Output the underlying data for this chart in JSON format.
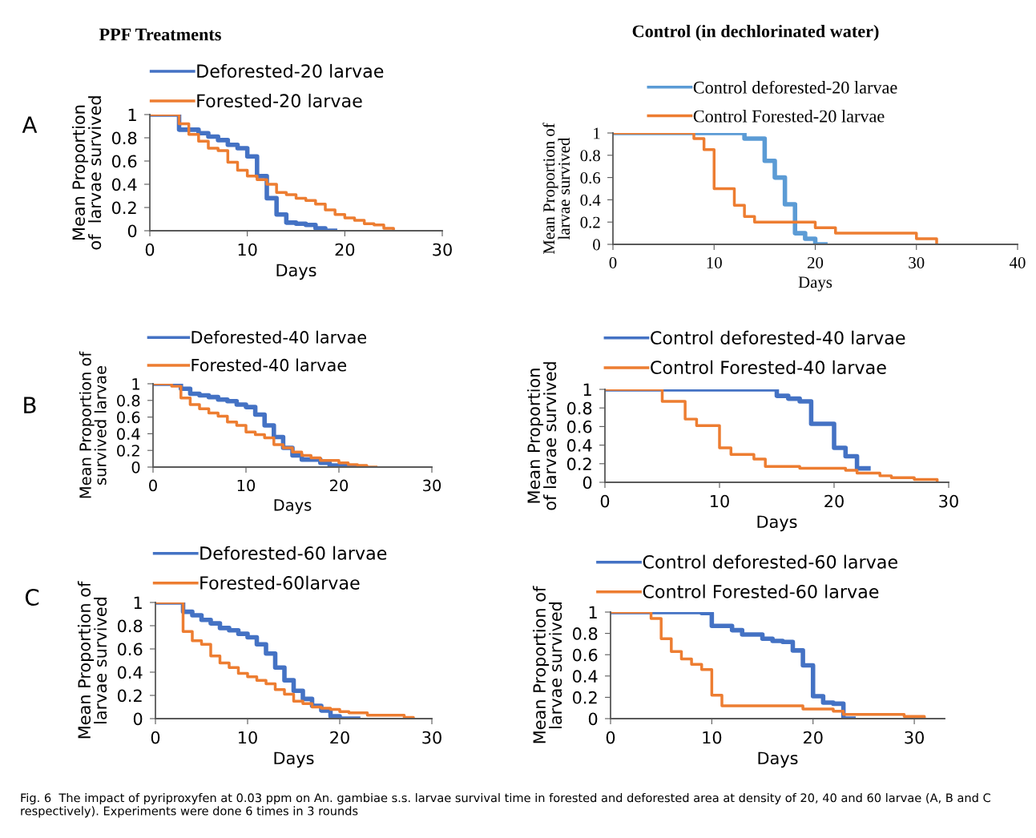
{
  "chart_data": [
    {
      "type": "step",
      "title": "PPF Treatments",
      "xlabel": "Days",
      "ylabel": "Mean Proportion\nof  larvae survived",
      "xlim": [
        0,
        30
      ],
      "xticks": [
        0,
        10,
        20,
        30
      ],
      "ylim": [
        0,
        1
      ],
      "yticks": [
        0,
        0.2,
        0.4,
        0.6,
        0.8,
        1
      ],
      "legend": "top left",
      "annotations": [
        "A"
      ],
      "series": [
        {
          "name": "Deforested-20 larvae",
          "color": "#4472c4",
          "x": [
            0,
            3,
            5,
            6,
            7,
            8,
            9,
            10,
            11,
            12,
            13,
            14,
            15,
            16,
            17,
            18,
            19
          ],
          "values": [
            1,
            0.87,
            0.84,
            0.81,
            0.78,
            0.74,
            0.71,
            0.64,
            0.47,
            0.28,
            0.14,
            0.07,
            0.06,
            0.05,
            0.02,
            0,
            0
          ]
        },
        {
          "name": "Forested-20 larvae",
          "color": "#ed7d31",
          "x": [
            0,
            3,
            4,
            5,
            6,
            7,
            8,
            9,
            10,
            11,
            12,
            13,
            14,
            15,
            16,
            17,
            18,
            19,
            20,
            21,
            22,
            23,
            24,
            25
          ],
          "values": [
            1,
            0.92,
            0.83,
            0.77,
            0.71,
            0.69,
            0.59,
            0.52,
            0.47,
            0.44,
            0.4,
            0.33,
            0.31,
            0.28,
            0.26,
            0.23,
            0.18,
            0.14,
            0.11,
            0.09,
            0.06,
            0.05,
            0.02,
            0
          ]
        }
      ]
    },
    {
      "type": "step",
      "title": "Control (in dechlorinated water)",
      "xlabel": "Days",
      "ylabel": "Mean Proportion of\nlarvae survived",
      "xlim": [
        0,
        40
      ],
      "xticks": [
        0,
        10,
        20,
        30,
        40
      ],
      "ylim": [
        0,
        1
      ],
      "yticks": [
        0,
        0.2,
        0.4,
        0.6,
        0.8,
        1
      ],
      "legend": "top left",
      "series": [
        {
          "name": "Control deforested-20 larvae",
          "color": "#5b9bd5",
          "x": [
            0,
            13,
            15,
            16,
            17,
            18,
            19,
            20,
            21
          ],
          "values": [
            1,
            0.95,
            0.75,
            0.6,
            0.36,
            0.1,
            0.05,
            0,
            0
          ]
        },
        {
          "name": "Control Forested-20 larvae",
          "color": "#ed7d31",
          "x": [
            0,
            8,
            9,
            10,
            12,
            13,
            14,
            20,
            22,
            30,
            32
          ],
          "values": [
            1,
            0.95,
            0.85,
            0.5,
            0.35,
            0.25,
            0.2,
            0.15,
            0.1,
            0.05,
            0
          ]
        }
      ]
    },
    {
      "type": "step",
      "xlabel": "Days",
      "ylabel": "Mean Proportion of\nsurvived larvae",
      "xlim": [
        0,
        30
      ],
      "xticks": [
        0,
        10,
        20,
        30
      ],
      "ylim": [
        0,
        1
      ],
      "yticks": [
        0,
        0.2,
        0.4,
        0.6,
        0.8,
        1
      ],
      "legend": "top left",
      "annotations": [
        "B"
      ],
      "series": [
        {
          "name": "Deforested-40 larvae",
          "color": "#4472c4",
          "x": [
            0,
            3,
            4,
            5,
            6,
            7,
            8,
            9,
            10,
            11,
            12,
            13,
            14,
            15,
            16,
            18,
            19,
            21,
            22
          ],
          "values": [
            1,
            0.94,
            0.88,
            0.86,
            0.84,
            0.81,
            0.79,
            0.75,
            0.72,
            0.63,
            0.5,
            0.36,
            0.23,
            0.14,
            0.09,
            0.05,
            0.02,
            0,
            0
          ]
        },
        {
          "name": "Forested-40 larvae",
          "color": "#ed7d31",
          "x": [
            0,
            2,
            3,
            4,
            5,
            6,
            7,
            8,
            9,
            10,
            11,
            12,
            13,
            14,
            15,
            16,
            17,
            18,
            20,
            21,
            22,
            23,
            24
          ],
          "values": [
            1,
            0.97,
            0.83,
            0.75,
            0.7,
            0.65,
            0.61,
            0.54,
            0.5,
            0.42,
            0.39,
            0.35,
            0.27,
            0.23,
            0.18,
            0.14,
            0.11,
            0.08,
            0.05,
            0.03,
            0.02,
            0,
            0
          ]
        }
      ]
    },
    {
      "type": "step",
      "xlabel": "Days",
      "ylabel": "Mean Proportion\nof larvae survived",
      "xlim": [
        0,
        30
      ],
      "xticks": [
        0,
        10,
        20,
        30
      ],
      "ylim": [
        0,
        1
      ],
      "yticks": [
        0,
        0.2,
        0.4,
        0.6,
        0.8,
        1
      ],
      "legend": "top left",
      "series": [
        {
          "name": "Control deforested-40 larvae",
          "color": "#4472c4",
          "x": [
            0,
            15,
            16,
            17,
            18,
            20,
            21,
            22,
            23
          ],
          "values": [
            1,
            0.93,
            0.9,
            0.87,
            0.63,
            0.37,
            0.28,
            0.15,
            0.15
          ]
        },
        {
          "name": "Control Forested-40 larvae",
          "color": "#ed7d31",
          "x": [
            0,
            5,
            7,
            8,
            10,
            11,
            13,
            14,
            17,
            21,
            22,
            24,
            25,
            27,
            29
          ],
          "values": [
            1,
            0.87,
            0.68,
            0.61,
            0.37,
            0.3,
            0.25,
            0.17,
            0.15,
            0.13,
            0.1,
            0.07,
            0.05,
            0.03,
            0
          ]
        }
      ]
    },
    {
      "type": "step",
      "xlabel": "Days",
      "ylabel": "Mean Proportion of\nlarvae survived",
      "xlim": [
        0,
        30
      ],
      "xticks": [
        0,
        10,
        20,
        30
      ],
      "ylim": [
        0,
        1
      ],
      "yticks": [
        0,
        0.2,
        0.4,
        0.6,
        0.8,
        1
      ],
      "legend": "top left",
      "annotations": [
        "C"
      ],
      "series": [
        {
          "name": "Deforested-60 larvae",
          "color": "#4472c4",
          "x": [
            0,
            3,
            4,
            5,
            6,
            7,
            8,
            9,
            10,
            11,
            12,
            13,
            14,
            15,
            16,
            17,
            18,
            19,
            20,
            22
          ],
          "values": [
            1,
            0.92,
            0.89,
            0.85,
            0.82,
            0.78,
            0.76,
            0.73,
            0.7,
            0.64,
            0.56,
            0.44,
            0.33,
            0.24,
            0.17,
            0.11,
            0.07,
            0.02,
            0,
            0
          ]
        },
        {
          "name": "Forested-60larvae",
          "color": "#ed7d31",
          "x": [
            0,
            3,
            4,
            5,
            6,
            7,
            8,
            9,
            10,
            11,
            12,
            13,
            14,
            15,
            16,
            17,
            18,
            19,
            20,
            21,
            22,
            23,
            27,
            28
          ],
          "values": [
            1,
            0.75,
            0.67,
            0.64,
            0.54,
            0.48,
            0.44,
            0.39,
            0.36,
            0.33,
            0.3,
            0.25,
            0.21,
            0.15,
            0.13,
            0.1,
            0.09,
            0.08,
            0.06,
            0.05,
            0.05,
            0.03,
            0.01,
            0
          ]
        }
      ]
    },
    {
      "type": "step",
      "xlabel": "Days",
      "ylabel": "Mean Proportion of\nlarvae survived",
      "xlim": [
        0,
        33
      ],
      "xticks": [
        0,
        10,
        20,
        30
      ],
      "ylim": [
        0,
        1
      ],
      "yticks": [
        0,
        0.2,
        0.4,
        0.6,
        0.8,
        1
      ],
      "legend": "top left",
      "annotations": [
        "Fig. 6  The impact of pyriproxyfen at 0.03 ppm on An. gambiae s.s. larvae survival time in forested and deforested area at density of 20, 40 and 60 larvae (A, B and C respectively). Experiments were done 6 times in 3 rounds"
      ],
      "series": [
        {
          "name": "Control deforested-60 larvae",
          "color": "#4472c4",
          "x": [
            0,
            9,
            10,
            12,
            13,
            15,
            16,
            17,
            18,
            19,
            20,
            21,
            22,
            23,
            24
          ],
          "values": [
            1,
            0.99,
            0.87,
            0.83,
            0.79,
            0.75,
            0.73,
            0.72,
            0.64,
            0.5,
            0.21,
            0.15,
            0.14,
            0,
            0
          ]
        },
        {
          "name": "Control Forested-60 larvae",
          "color": "#ed7d31",
          "x": [
            0,
            4,
            5,
            6,
            7,
            8,
            9,
            10,
            11,
            19,
            22,
            23,
            29,
            31
          ],
          "values": [
            1,
            0.94,
            0.75,
            0.63,
            0.56,
            0.51,
            0.46,
            0.22,
            0.12,
            0.09,
            0.07,
            0.04,
            0.02,
            0
          ]
        }
      ]
    }
  ]
}
